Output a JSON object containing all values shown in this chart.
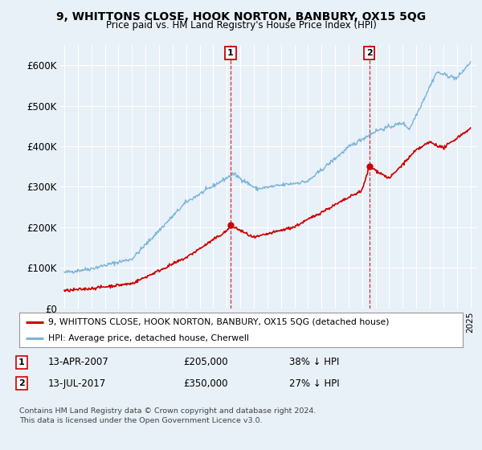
{
  "title": "9, WHITTONS CLOSE, HOOK NORTON, BANBURY, OX15 5QG",
  "subtitle": "Price paid vs. HM Land Registry's House Price Index (HPI)",
  "background_color": "#e8f0f8",
  "plot_bg_color": "#e8f0f8",
  "hpi_color": "#7ab4d8",
  "price_color": "#cc0000",
  "marker_color": "#cc0000",
  "legend_label_price": "9, WHITTONS CLOSE, HOOK NORTON, BANBURY, OX15 5QG (detached house)",
  "legend_label_hpi": "HPI: Average price, detached house, Cherwell",
  "transaction1_date": "13-APR-2007",
  "transaction1_price": "£205,000",
  "transaction1_note": "38% ↓ HPI",
  "transaction2_date": "13-JUL-2017",
  "transaction2_price": "£350,000",
  "transaction2_note": "27% ↓ HPI",
  "footer": "Contains HM Land Registry data © Crown copyright and database right 2024.\nThis data is licensed under the Open Government Licence v3.0.",
  "ylim": [
    0,
    650000
  ],
  "yticks": [
    0,
    100000,
    200000,
    300000,
    400000,
    500000,
    600000
  ],
  "ytick_labels": [
    "£0",
    "£100K",
    "£200K",
    "£300K",
    "£400K",
    "£500K",
    "£600K"
  ],
  "xmin": 1994.7,
  "xmax": 2025.5,
  "t1_x": 2007.28,
  "t1_y": 205000,
  "t2_x": 2017.53,
  "t2_y": 350000
}
